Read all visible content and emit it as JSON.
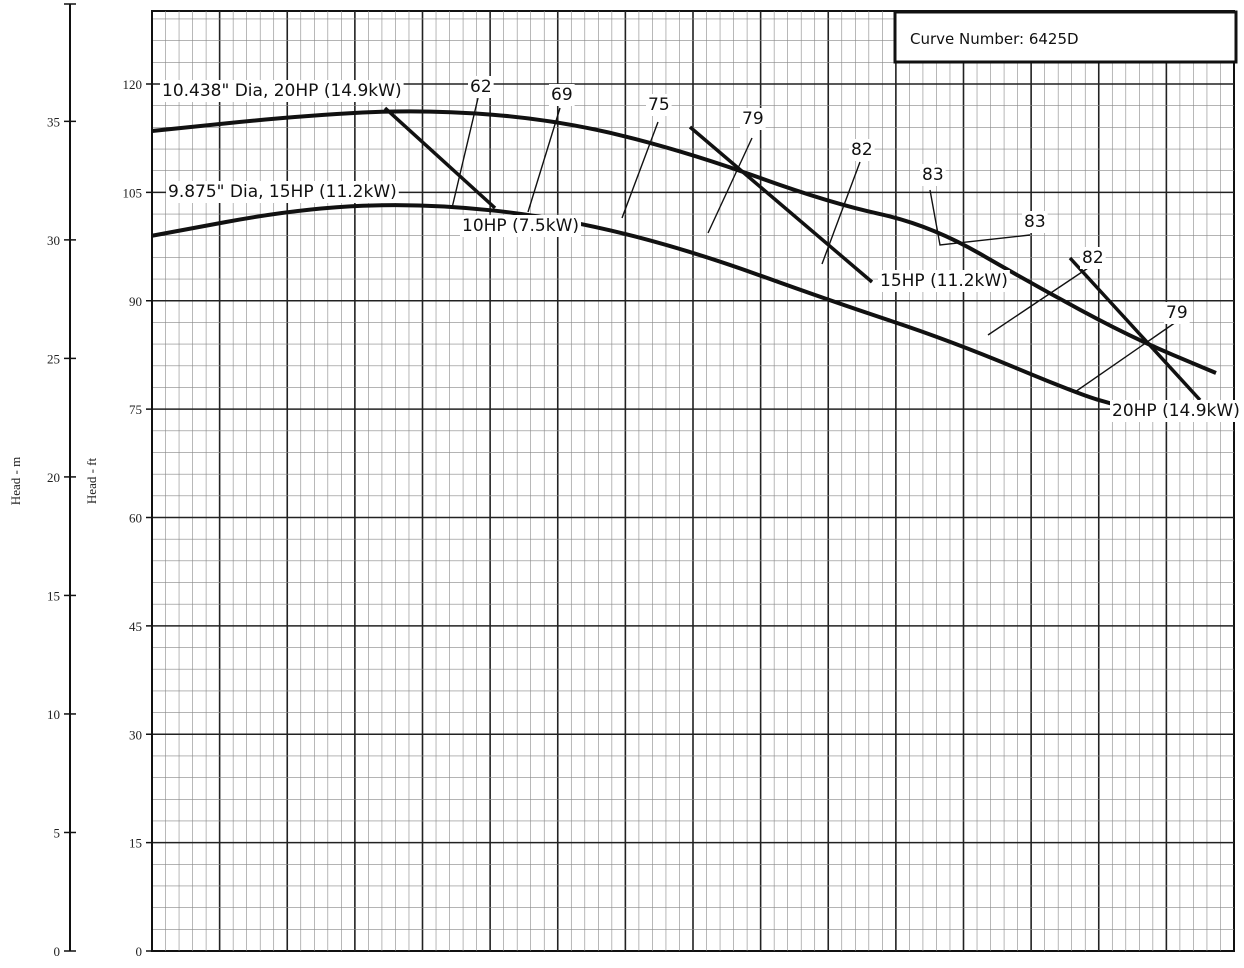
{
  "chart_data": {
    "type": "line",
    "title": "",
    "curve_number": "Curve Number: 6425D",
    "xlabel": "",
    "ylabel_ft": "Head - ft",
    "ylabel_m": "Head - m",
    "ylim_ft": [
      0,
      130
    ],
    "ft_ticks": [
      "0",
      "15",
      "30",
      "45",
      "60",
      "75",
      "90",
      "105",
      "120"
    ],
    "ylim_m": [
      0,
      39.6
    ],
    "m_ticks": [
      "0",
      "5",
      "10",
      "15",
      "20",
      "25",
      "30",
      "35"
    ],
    "grid": true,
    "series": [
      {
        "name": "10.438\" Dia, 20HP (14.9kW)",
        "head_ft": [
          113.5,
          115.6,
          116.5,
          115.0,
          110.5,
          103.5,
          100.5,
          92.5,
          85.0,
          80.0
        ]
      },
      {
        "name": "9.875\" Dia, 15HP (11.2kW)",
        "head_ft": [
          99.0,
          102.8,
          103.5,
          101.5,
          97.0,
          90.0,
          84.5,
          77.0,
          75.5
        ]
      }
    ],
    "power_lines": [
      "10HP (7.5kW)",
      "15HP (11.2kW)",
      "20HP (14.9kW)"
    ],
    "efficiency_labels": [
      "62",
      "69",
      "75",
      "79",
      "82",
      "83",
      "83",
      "82",
      "79"
    ]
  }
}
